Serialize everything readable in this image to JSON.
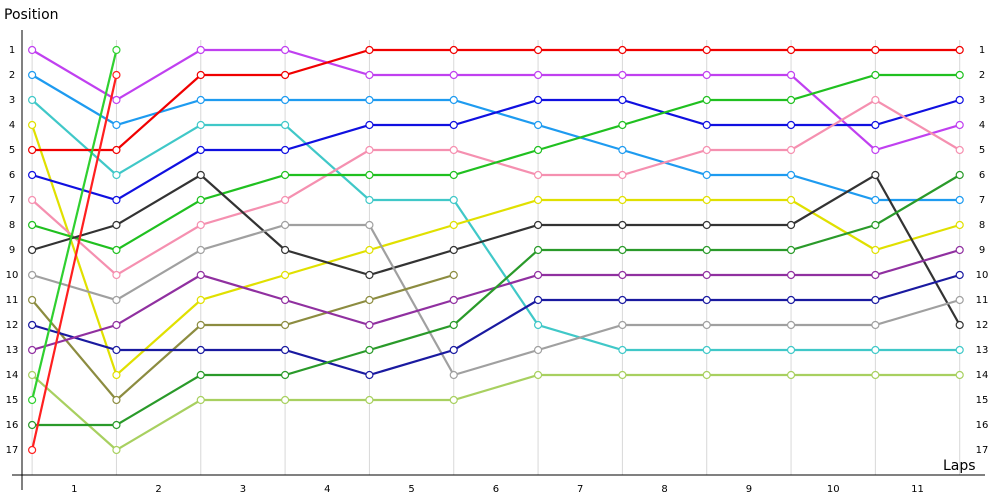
{
  "chart_data": {
    "type": "line",
    "y_label": "Position",
    "x_label": "Laps",
    "x": [
      0,
      1,
      2,
      3,
      4,
      5,
      6,
      7,
      8,
      9,
      10,
      11
    ],
    "xlim": [
      -0.12,
      11.3
    ],
    "ylim": [
      18,
      0.2
    ],
    "xticks": [
      {
        "value": 0.5,
        "label": "1"
      },
      {
        "value": 1.5,
        "label": "2"
      },
      {
        "value": 2.5,
        "label": "3"
      },
      {
        "value": 3.5,
        "label": "4"
      },
      {
        "value": 4.5,
        "label": "5"
      },
      {
        "value": 5.5,
        "label": "6"
      },
      {
        "value": 6.5,
        "label": "7"
      },
      {
        "value": 7.5,
        "label": "8"
      },
      {
        "value": 8.5,
        "label": "9"
      },
      {
        "value": 9.5,
        "label": "10"
      },
      {
        "value": 10.5,
        "label": "11"
      }
    ],
    "yticks": [
      1,
      2,
      3,
      4,
      5,
      6,
      7,
      8,
      9,
      10,
      11,
      12,
      13,
      14,
      15,
      16,
      17
    ],
    "grid": true,
    "series": [
      {
        "color": "#c040f0",
        "values": [
          1,
          3,
          1,
          1,
          2,
          2,
          2,
          2,
          2,
          2,
          5,
          4
        ]
      },
      {
        "color": "#1e9bf0",
        "values": [
          2,
          4,
          3,
          3,
          3,
          3,
          4,
          5,
          6,
          6,
          7,
          7
        ]
      },
      {
        "color": "#40c8c8",
        "values": [
          3,
          6,
          4,
          4,
          7,
          7,
          12,
          13,
          13,
          13,
          13,
          13
        ]
      },
      {
        "color": "#e0e000",
        "values": [
          4,
          14,
          11,
          10,
          9,
          8,
          7,
          7,
          7,
          7,
          9,
          8
        ]
      },
      {
        "color": "#f00000",
        "values": [
          5,
          5,
          2,
          2,
          1,
          1,
          1,
          1,
          1,
          1,
          1,
          1
        ]
      },
      {
        "color": "#1010e0",
        "values": [
          6,
          7,
          5,
          5,
          4,
          4,
          3,
          3,
          4,
          4,
          4,
          3
        ]
      },
      {
        "color": "#f590b0",
        "values": [
          7,
          10,
          8,
          7,
          5,
          5,
          6,
          6,
          5,
          5,
          3,
          5
        ]
      },
      {
        "color": "#20c020",
        "values": [
          8,
          9,
          7,
          6,
          6,
          6,
          5,
          4,
          3,
          3,
          2,
          2
        ]
      },
      {
        "color": "#333333",
        "values": [
          9,
          8,
          6,
          9,
          10,
          9,
          8,
          8,
          8,
          8,
          6,
          12
        ]
      },
      {
        "color": "#a0a0a0",
        "values": [
          10,
          11,
          9,
          8,
          8,
          14,
          13,
          12,
          12,
          12,
          12,
          11
        ]
      },
      {
        "color": "#8c8c40",
        "values": [
          11,
          15,
          12,
          12,
          11,
          10,
          null,
          null,
          null,
          null,
          null,
          null
        ]
      },
      {
        "color": "#1a1aa0",
        "values": [
          12,
          13,
          13,
          13,
          14,
          13,
          11,
          11,
          11,
          11,
          11,
          10
        ]
      },
      {
        "color": "#9030a0",
        "values": [
          13,
          12,
          10,
          11,
          12,
          11,
          10,
          10,
          10,
          10,
          10,
          9
        ]
      },
      {
        "color": "#a8d060",
        "values": [
          14,
          17,
          15,
          15,
          15,
          15,
          14,
          14,
          14,
          14,
          14,
          14
        ]
      },
      {
        "color": "#30d030",
        "values": [
          15,
          1,
          null,
          null,
          null,
          null,
          null,
          null,
          null,
          null,
          null,
          null
        ]
      },
      {
        "color": "#2a9a2a",
        "values": [
          16,
          16,
          14,
          14,
          13,
          12,
          9,
          9,
          9,
          9,
          8,
          6
        ]
      },
      {
        "color": "#ff2020",
        "values": [
          17,
          2,
          null,
          null,
          null,
          null,
          null,
          null,
          null,
          null,
          null,
          null
        ]
      }
    ]
  }
}
